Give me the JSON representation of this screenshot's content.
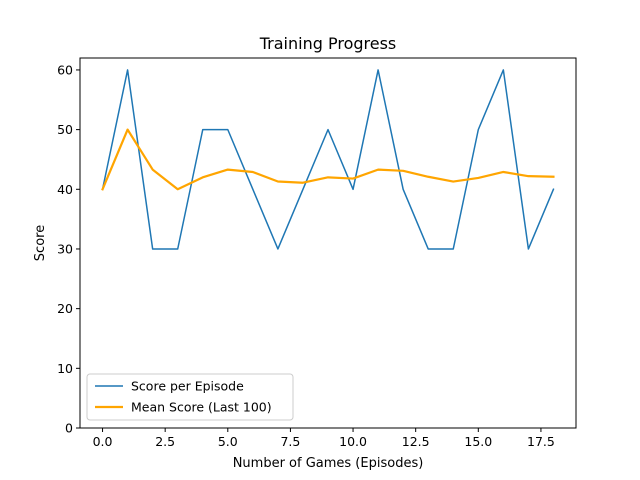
{
  "chart_data": {
    "type": "line",
    "title": "Training Progress",
    "xlabel": "Number of Games (Episodes)",
    "ylabel": "Score",
    "xlim": [
      -0.9,
      18.9
    ],
    "ylim": [
      0,
      62
    ],
    "x_ticks": [
      0,
      2.5,
      5,
      7.5,
      10,
      12.5,
      15,
      17.5
    ],
    "x_tick_labels": [
      "0.0",
      "2.5",
      "5.0",
      "7.5",
      "10.0",
      "12.5",
      "15.0",
      "17.5"
    ],
    "y_ticks": [
      0,
      10,
      20,
      30,
      40,
      50,
      60
    ],
    "y_tick_labels": [
      "0",
      "10",
      "20",
      "30",
      "40",
      "50",
      "60"
    ],
    "grid": false,
    "legend_position": "lower-left",
    "x": [
      0,
      1,
      2,
      3,
      4,
      5,
      6,
      7,
      8,
      9,
      10,
      11,
      12,
      13,
      14,
      15,
      16,
      17,
      18
    ],
    "series": [
      {
        "name": "Score per Episode",
        "color": "#1f77b4",
        "values": [
          40,
          60,
          30,
          30,
          50,
          50,
          40,
          30,
          40,
          50,
          40,
          60,
          40,
          30,
          30,
          50,
          60,
          30,
          40
        ]
      },
      {
        "name": "Mean Score (Last 100)",
        "color": "#ffa500",
        "values": [
          40,
          50,
          43.3,
          40,
          42,
          43.3,
          42.9,
          41.3,
          41.1,
          42,
          41.8,
          43.3,
          43.1,
          42.1,
          41.3,
          41.9,
          42.9,
          42.2,
          42.1
        ]
      }
    ]
  }
}
